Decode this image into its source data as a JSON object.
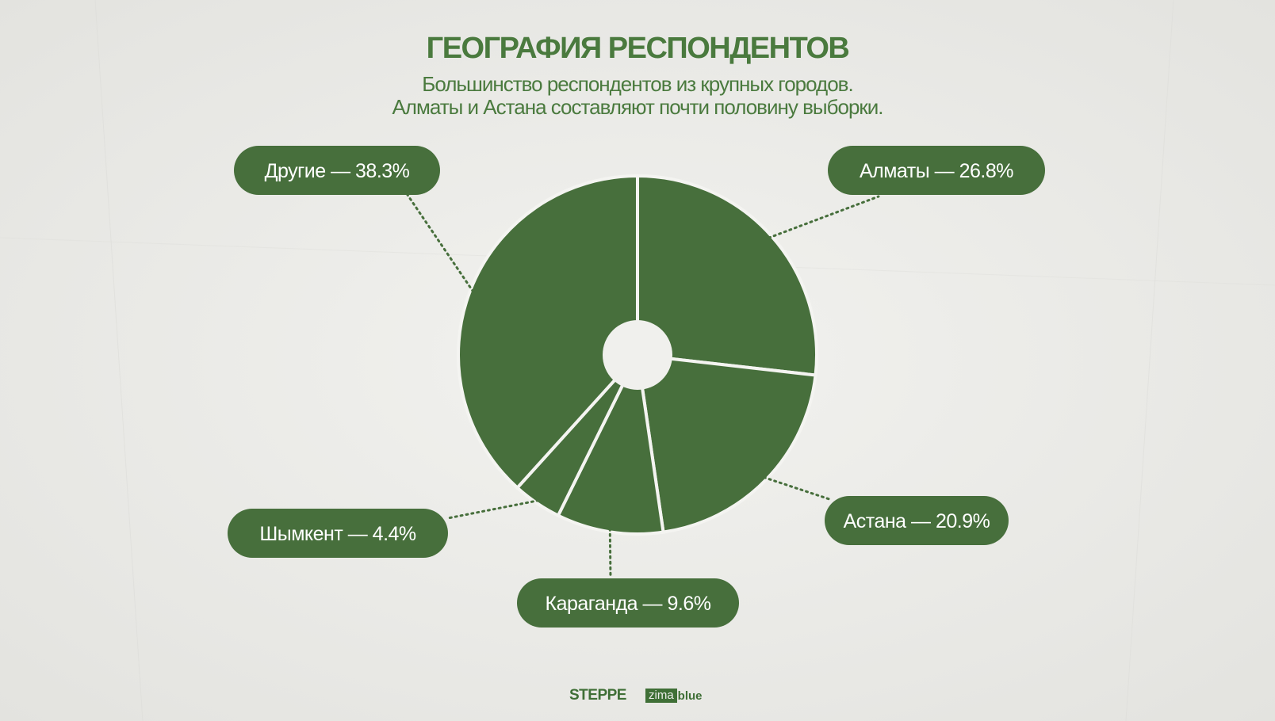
{
  "title": "ГЕОГРАФИЯ РЕСПОНДЕНТОВ",
  "subtitle_lines": [
    "Большинство респондентов из крупных городов.",
    "Алматы и Астана составляют почти половину выборки."
  ],
  "colors": {
    "accent": "#4a7a3e",
    "slice": "#476f3c",
    "background": "#ededea"
  },
  "chart_data": {
    "type": "pie",
    "donut_hole": true,
    "title": "ГЕОГРАФИЯ РЕСПОНДЕНТОВ",
    "categories": [
      "Алматы",
      "Астана",
      "Караганда",
      "Шымкент",
      "Другие"
    ],
    "values": [
      26.8,
      20.9,
      9.6,
      4.4,
      38.3
    ],
    "unit": "%",
    "labels": [
      "Алматы — 26.8%",
      "Астана — 20.9%",
      "Караганда — 9.6%",
      "Шымкент — 4.4%",
      "Другие — 38.3%"
    ],
    "legend": "none"
  },
  "footer": {
    "logo_steppe": "STEPPE",
    "logo_zima": "zima",
    "logo_blue": "blue"
  }
}
